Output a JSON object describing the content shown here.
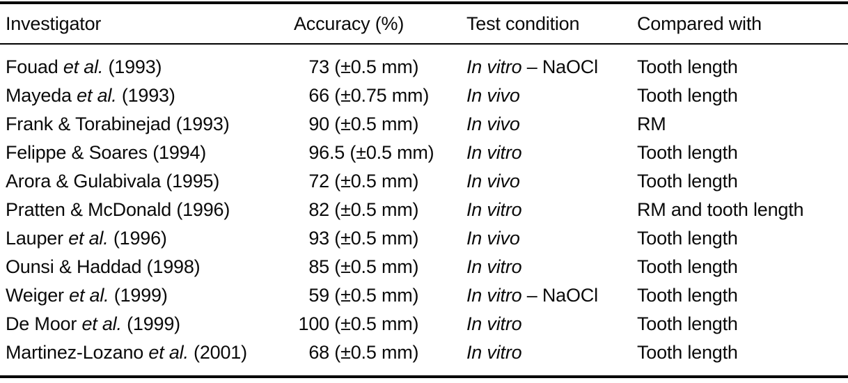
{
  "table": {
    "columns": [
      {
        "label": "Investigator"
      },
      {
        "label": "Accuracy (%)"
      },
      {
        "label": "Test condition"
      },
      {
        "label": "Compared with"
      }
    ],
    "rows": [
      {
        "investigator": [
          {
            "t": "Fouad ",
            "i": false
          },
          {
            "t": "et al.",
            "i": true
          },
          {
            "t": " (1993)",
            "i": false
          }
        ],
        "accuracy": {
          "value": "73",
          "tolerance": "(±0.5 mm)"
        },
        "condition": [
          {
            "t": "In vitro",
            "i": true
          },
          {
            "t": " – NaOCl",
            "i": false
          }
        ],
        "compared": "Tooth length"
      },
      {
        "investigator": [
          {
            "t": "Mayeda ",
            "i": false
          },
          {
            "t": "et al.",
            "i": true
          },
          {
            "t": " (1993)",
            "i": false
          }
        ],
        "accuracy": {
          "value": "66",
          "tolerance": "(±0.75 mm)"
        },
        "condition": [
          {
            "t": "In vivo",
            "i": true
          }
        ],
        "compared": "Tooth length"
      },
      {
        "investigator": [
          {
            "t": "Frank & Torabinejad (1993)",
            "i": false
          }
        ],
        "accuracy": {
          "value": "90",
          "tolerance": "(±0.5 mm)"
        },
        "condition": [
          {
            "t": "In vivo",
            "i": true
          }
        ],
        "compared": "RM"
      },
      {
        "investigator": [
          {
            "t": "Felippe & Soares (1994)",
            "i": false
          }
        ],
        "accuracy": {
          "value": "96.5",
          "tolerance": "(±0.5 mm)"
        },
        "condition": [
          {
            "t": "In vitro",
            "i": true
          }
        ],
        "compared": "Tooth length"
      },
      {
        "investigator": [
          {
            "t": "Arora & Gulabivala (1995)",
            "i": false
          }
        ],
        "accuracy": {
          "value": "72",
          "tolerance": "(±0.5 mm)"
        },
        "condition": [
          {
            "t": "In vivo",
            "i": true
          }
        ],
        "compared": "Tooth length"
      },
      {
        "investigator": [
          {
            "t": "Pratten & McDonald (1996)",
            "i": false
          }
        ],
        "accuracy": {
          "value": "82",
          "tolerance": "(±0.5 mm)"
        },
        "condition": [
          {
            "t": "In vitro",
            "i": true
          }
        ],
        "compared": "RM and tooth length"
      },
      {
        "investigator": [
          {
            "t": "Lauper ",
            "i": false
          },
          {
            "t": "et al.",
            "i": true
          },
          {
            "t": " (1996)",
            "i": false
          }
        ],
        "accuracy": {
          "value": "93",
          "tolerance": "(±0.5 mm)"
        },
        "condition": [
          {
            "t": "In vivo",
            "i": true
          }
        ],
        "compared": "Tooth length"
      },
      {
        "investigator": [
          {
            "t": "Ounsi & Haddad (1998)",
            "i": false
          }
        ],
        "accuracy": {
          "value": "85",
          "tolerance": "(±0.5 mm)"
        },
        "condition": [
          {
            "t": "In vitro",
            "i": true
          }
        ],
        "compared": "Tooth length"
      },
      {
        "investigator": [
          {
            "t": "Weiger ",
            "i": false
          },
          {
            "t": "et al.",
            "i": true
          },
          {
            "t": " (1999)",
            "i": false
          }
        ],
        "accuracy": {
          "value": "59",
          "tolerance": "(±0.5 mm)"
        },
        "condition": [
          {
            "t": "In vitro",
            "i": true
          },
          {
            "t": " – NaOCl",
            "i": false
          }
        ],
        "compared": "Tooth length"
      },
      {
        "investigator": [
          {
            "t": "De Moor ",
            "i": false
          },
          {
            "t": "et al.",
            "i": true
          },
          {
            "t": " (1999)",
            "i": false
          }
        ],
        "accuracy": {
          "value": "100",
          "tolerance": "(±0.5 mm)"
        },
        "condition": [
          {
            "t": "In vitro",
            "i": true
          }
        ],
        "compared": "Tooth length"
      },
      {
        "investigator": [
          {
            "t": "Martinez-Lozano ",
            "i": false
          },
          {
            "t": "et al.",
            "i": true
          },
          {
            "t": " (2001)",
            "i": false
          }
        ],
        "accuracy": {
          "value": "68",
          "tolerance": "(±0.5 mm)"
        },
        "condition": [
          {
            "t": "In vitro",
            "i": true
          }
        ],
        "compared": "Tooth length"
      }
    ]
  }
}
